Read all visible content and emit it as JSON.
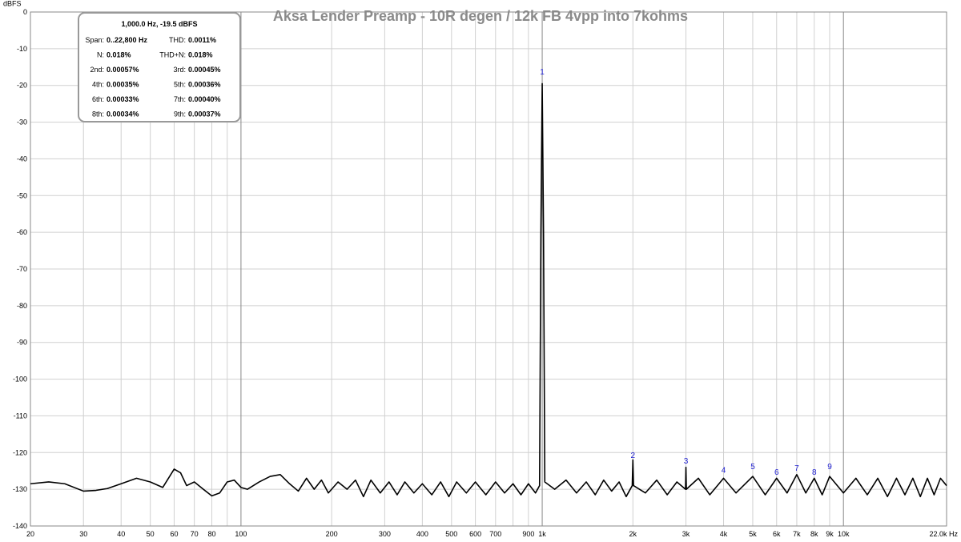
{
  "chart_data": {
    "type": "line",
    "title": "Aksa Lender Preamp - 10R degen / 12k FB 4vpp into 7kohms",
    "y_label": "dBFS",
    "log_x": true,
    "grid": true,
    "xlim": [
      20,
      22000
    ],
    "ylim": [
      -140,
      0
    ],
    "xticks": [
      20,
      30,
      40,
      50,
      60,
      70,
      80,
      {
        "value": 90,
        "label": null
      },
      100,
      200,
      300,
      400,
      500,
      600,
      700,
      {
        "value": 800,
        "label": null
      },
      900,
      {
        "value": 1000,
        "label": "1k"
      },
      {
        "value": 2000,
        "label": "2k"
      },
      {
        "value": 3000,
        "label": "3k"
      },
      {
        "value": 4000,
        "label": "4k"
      },
      {
        "value": 5000,
        "label": "5k"
      },
      {
        "value": 6000,
        "label": "6k"
      },
      {
        "value": 7000,
        "label": "7k"
      },
      {
        "value": 8000,
        "label": "8k"
      },
      {
        "value": 9000,
        "label": "9k"
      },
      {
        "value": 10000,
        "label": "10k"
      },
      {
        "value": 22000,
        "label": "22.0k Hz"
      }
    ],
    "yticks": [
      0,
      -10,
      -20,
      -30,
      -40,
      -50,
      -60,
      -70,
      -80,
      -90,
      -100,
      -110,
      -120,
      -130,
      -140
    ],
    "series": [
      {
        "name": "Spectrum",
        "color": "#000000",
        "x": [
          20,
          23,
          26,
          30,
          33,
          36,
          40,
          45,
          50,
          55,
          60,
          63,
          66,
          70,
          75,
          80,
          85,
          90,
          95,
          100,
          105,
          115,
          125,
          135,
          145,
          155,
          165,
          175,
          185,
          195,
          210,
          225,
          240,
          255,
          270,
          290,
          310,
          330,
          350,
          375,
          400,
          430,
          460,
          490,
          520,
          560,
          600,
          650,
          700,
          750,
          800,
          850,
          900,
          950,
          980,
          990,
          1000,
          1010,
          1020,
          1100,
          1200,
          1300,
          1400,
          1500,
          1600,
          1700,
          1800,
          1900,
          1990,
          2000,
          2010,
          2200,
          2400,
          2600,
          2800,
          2990,
          3000,
          3010,
          3300,
          3600,
          4000,
          4400,
          5000,
          5500,
          6000,
          6500,
          7000,
          7500,
          8000,
          8500,
          9000,
          10000,
          11000,
          12000,
          13000,
          14000,
          15000,
          16000,
          17000,
          18000,
          19000,
          20000,
          21000,
          22000
        ],
        "values": [
          -128.5,
          -128,
          -128.5,
          -130.5,
          -130.3,
          -129.8,
          -128.5,
          -127,
          -128,
          -129.5,
          -124.5,
          -125.5,
          -129,
          -128,
          -130,
          -131.8,
          -131,
          -128,
          -127.5,
          -129.5,
          -130,
          -128,
          -126.5,
          -126,
          -128.5,
          -130.5,
          -127,
          -130,
          -127.5,
          -131,
          -128,
          -130,
          -127.5,
          -132,
          -127.5,
          -131,
          -128,
          -131.5,
          -128,
          -131,
          -128.5,
          -131.5,
          -128,
          -132,
          -128,
          -131,
          -128,
          -131.5,
          -128,
          -131,
          -128.5,
          -131.5,
          -128.5,
          -131,
          -129,
          -60,
          -19.5,
          -60,
          -128,
          -130,
          -127.5,
          -131,
          -128,
          -131.5,
          -127.5,
          -130.5,
          -128,
          -132,
          -129,
          -122,
          -129,
          -131,
          -127.5,
          -131.5,
          -128,
          -130,
          -124,
          -130,
          -127,
          -131.5,
          -127,
          -131,
          -126.5,
          -131.5,
          -127,
          -131,
          -126,
          -131,
          -127,
          -131.5,
          -126.5,
          -131,
          -127,
          -131.5,
          -127,
          -132,
          -127,
          -131.5,
          -127,
          -132,
          -127,
          -131.5,
          -127,
          -129
        ]
      }
    ],
    "markers": [
      {
        "label": "1",
        "x": 1000,
        "y": -17
      },
      {
        "label": "2",
        "x": 2000,
        "y": -121.5
      },
      {
        "label": "3",
        "x": 3000,
        "y": -123
      },
      {
        "label": "4",
        "x": 4000,
        "y": -125.5
      },
      {
        "label": "5",
        "x": 5000,
        "y": -124.5
      },
      {
        "label": "6",
        "x": 6000,
        "y": -126
      },
      {
        "label": "7",
        "x": 7000,
        "y": -125
      },
      {
        "label": "8",
        "x": 8000,
        "y": -126
      },
      {
        "label": "9",
        "x": 9000,
        "y": -124.5
      }
    ],
    "info_box": {
      "header": "1,000.0 Hz, -19.5 dBFS",
      "rows": [
        [
          "Span:",
          "0..22,800 Hz",
          "THD:",
          "0.0011%"
        ],
        [
          "N:",
          "0.018%",
          "THD+N:",
          "0.018%"
        ],
        [
          "2nd:",
          "0.00057%",
          "3rd:",
          "0.00045%"
        ],
        [
          "4th:",
          "0.00035%",
          "5th:",
          "0.00036%"
        ],
        [
          "6th:",
          "0.00033%",
          "7th:",
          "0.00040%"
        ],
        [
          "8th:",
          "0.00034%",
          "9th:",
          "0.00037%"
        ]
      ]
    }
  }
}
